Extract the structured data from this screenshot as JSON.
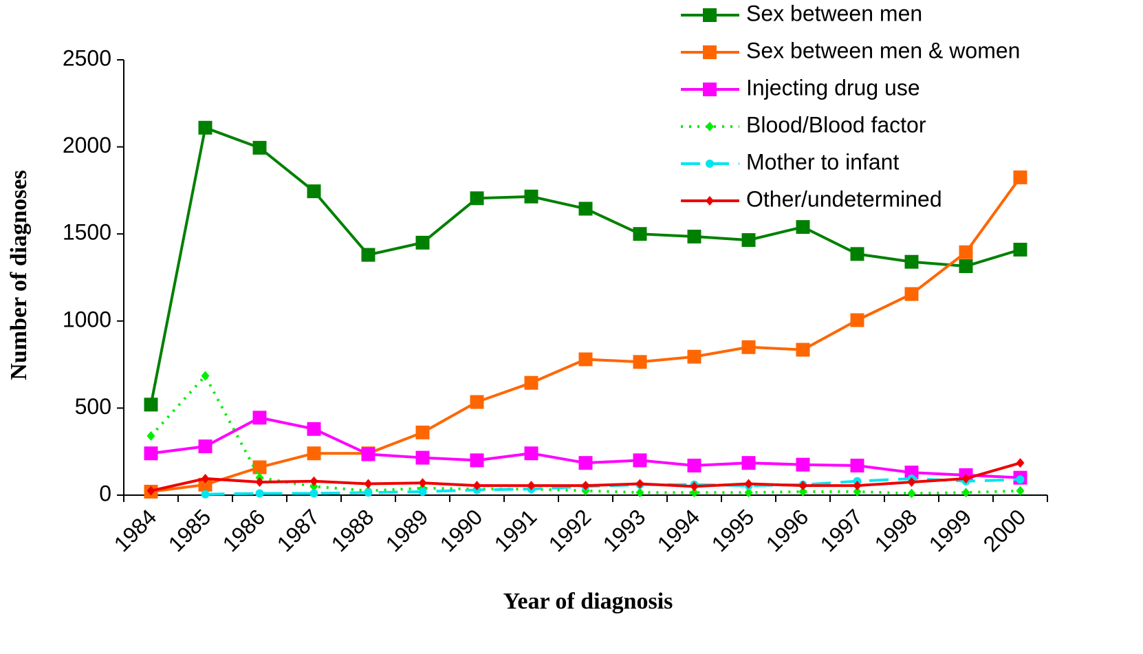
{
  "chart_data": {
    "type": "line",
    "x_label": "Year of diagnosis",
    "y_label": "Number of diagnoses",
    "categories": [
      "1984",
      "1985",
      "1986",
      "1987",
      "1988",
      "1989",
      "1990",
      "1991",
      "1992",
      "1993",
      "1994",
      "1995",
      "1996",
      "1997",
      "1998",
      "1999",
      "2000"
    ],
    "ylim": [
      0,
      2500
    ],
    "yticks": [
      0,
      500,
      1000,
      1500,
      2000,
      2500
    ],
    "legend": "top-right",
    "series": [
      {
        "name": "Sex between men",
        "color": "#008000",
        "marker": "square",
        "line_style": "solid",
        "values": [
          520,
          2110,
          1995,
          1745,
          1380,
          1450,
          1705,
          1715,
          1645,
          1500,
          1485,
          1465,
          1540,
          1385,
          1340,
          1315,
          1410
        ]
      },
      {
        "name": "Sex between men & women",
        "color": "#ff6600",
        "marker": "square",
        "line_style": "solid",
        "values": [
          20,
          60,
          160,
          240,
          240,
          360,
          535,
          645,
          780,
          765,
          795,
          850,
          835,
          1005,
          1155,
          1395,
          1825
        ]
      },
      {
        "name": "Injecting drug use",
        "color": "#ff00ff",
        "marker": "square",
        "line_style": "solid",
        "values": [
          240,
          280,
          445,
          380,
          235,
          215,
          200,
          240,
          185,
          200,
          170,
          185,
          175,
          170,
          130,
          115,
          100
        ]
      },
      {
        "name": "Blood/Blood factor",
        "color": "#00ee00",
        "marker": "diamond",
        "line_style": "dotted",
        "values": [
          340,
          685,
          100,
          50,
          25,
          40,
          35,
          35,
          25,
          15,
          15,
          15,
          20,
          20,
          10,
          15,
          25
        ]
      },
      {
        "name": "Mother to infant",
        "color": "#00e5ee",
        "marker": "circle",
        "line_style": "dashed",
        "values": [
          null,
          5,
          10,
          10,
          15,
          20,
          30,
          35,
          50,
          60,
          60,
          55,
          60,
          80,
          95,
          80,
          90
        ]
      },
      {
        "name": "Other/undetermined",
        "color": "#ee0000",
        "marker": "diamond",
        "line_style": "solid",
        "values": [
          25,
          95,
          75,
          80,
          65,
          70,
          55,
          55,
          55,
          65,
          50,
          65,
          55,
          55,
          75,
          95,
          185
        ]
      }
    ]
  }
}
